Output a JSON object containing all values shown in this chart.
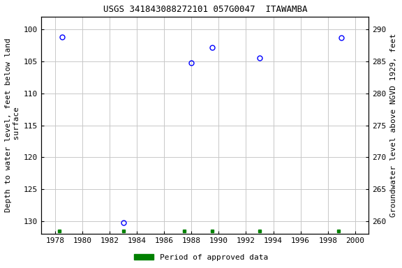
{
  "title": "USGS 341843088272101 057G0047  ITAWAMBA",
  "xlabel_years": [
    1978,
    1980,
    1982,
    1984,
    1986,
    1988,
    1990,
    1992,
    1994,
    1996,
    1998,
    2000
  ],
  "xlim": [
    1977,
    2001
  ],
  "ylim_left": [
    132,
    98
  ],
  "ylim_right": [
    258,
    292
  ],
  "ylabel_left": "Depth to water level, feet below land\n surface",
  "ylabel_right": "Groundwater level above NGVD 1929, feet",
  "yticks_left": [
    100,
    105,
    110,
    115,
    120,
    125,
    130
  ],
  "yticks_right": [
    290,
    285,
    280,
    275,
    270,
    265,
    260
  ],
  "data_x": [
    1978.5,
    1983.0,
    1988.0,
    1989.5,
    1993.0,
    1999.0
  ],
  "data_y": [
    101.2,
    130.2,
    105.2,
    102.8,
    104.5,
    101.3
  ],
  "green_squares_x": [
    1978.3,
    1983.0,
    1987.5,
    1989.5,
    1993.0,
    1998.8
  ],
  "green_square_y": 131.5,
  "marker_color": "#0000ff",
  "marker_size": 5,
  "grid_color": "#c8c8c8",
  "background_color": "#ffffff",
  "legend_label": "Period of approved data",
  "legend_color": "#008000",
  "title_fontsize": 9,
  "label_fontsize": 8,
  "tick_fontsize": 8
}
